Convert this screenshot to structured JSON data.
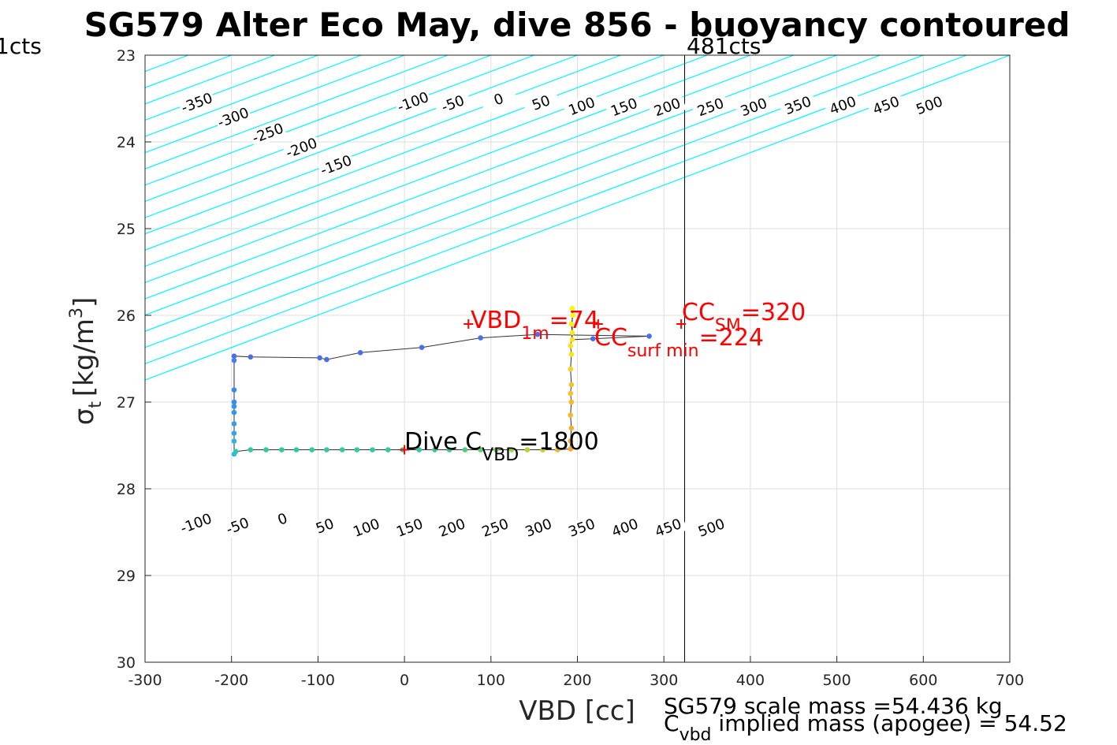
{
  "title": "SG579 Alter Eco May, dive 856 - buoyancy contoured",
  "left_cts_label": "1cts",
  "right_cts_label": "481cts",
  "xlabel": "VBD [cc]",
  "ylabel": {
    "main": "σ",
    "sub": "t",
    "unit": "[kg/m",
    "sup": "3",
    "close": "]"
  },
  "annotations": {
    "vbd1m": {
      "pre": "VBD",
      "sub": "1m",
      "post": "=74"
    },
    "cc_sm": {
      "pre": "CC",
      "sub": "SM",
      "post": "=320"
    },
    "cc_surf": {
      "pre": "CC",
      "sub": "surf min",
      "post": "=224"
    },
    "dive_cvbd": {
      "pre": "Dive C",
      "sub": "VBD",
      "post": "=1800"
    }
  },
  "bottom_notes": {
    "scale_mass": "SG579 scale mass =54.436 kg",
    "implied": {
      "pre": "C",
      "sub": "vbd",
      "post": " implied mass (apogee) = 54.52"
    }
  },
  "chart_data": {
    "type": "scatter",
    "xlim": [
      -300,
      700
    ],
    "ylim": [
      23,
      30
    ],
    "y_reversed": true,
    "x_ticks": [
      -300,
      -200,
      -100,
      0,
      100,
      200,
      300,
      400,
      500,
      600,
      700
    ],
    "y_ticks": [
      23,
      24,
      25,
      26,
      27,
      28,
      29,
      30
    ],
    "grid": true,
    "vertical_line_x": 324,
    "contour_slope_cc_per_sigma": -267,
    "contour_intercept_at_sigma23": [
      -1100,
      -1050,
      -1000,
      -950,
      -900,
      -850,
      -800,
      -750,
      -700,
      -650,
      -600,
      -550,
      -500,
      -450,
      -400,
      -350,
      -300,
      -250,
      -200,
      -150,
      -100,
      -50,
      0,
      50,
      100,
      150,
      200,
      250,
      300,
      350,
      400,
      450,
      500,
      550,
      600,
      650,
      700
    ],
    "contour_colors": {
      "default": "#00f5ff",
      "zero": "#0000cd",
      "special": "#b22ee0"
    },
    "contour_zero_intercept": 134,
    "contour_special_intercepts": [
      134,
      234
    ],
    "contour_labels_top": [
      {
        "text": "-350",
        "x": -240,
        "y": 23.55
      },
      {
        "text": "-300",
        "x": -198,
        "y": 23.72
      },
      {
        "text": "-250",
        "x": -158,
        "y": 23.9
      },
      {
        "text": "-200",
        "x": -119,
        "y": 24.07
      },
      {
        "text": "-150",
        "x": -79,
        "y": 24.27
      },
      {
        "text": "-100",
        "x": 10,
        "y": 23.54
      },
      {
        "text": "-50",
        "x": 56,
        "y": 23.56
      },
      {
        "text": "0",
        "x": 109,
        "y": 23.51
      },
      {
        "text": "50",
        "x": 158,
        "y": 23.55
      },
      {
        "text": "100",
        "x": 205,
        "y": 23.59
      },
      {
        "text": "150",
        "x": 254,
        "y": 23.6
      },
      {
        "text": "200",
        "x": 304,
        "y": 23.6
      },
      {
        "text": "250",
        "x": 354,
        "y": 23.6
      },
      {
        "text": "300",
        "x": 404,
        "y": 23.6
      },
      {
        "text": "350",
        "x": 455,
        "y": 23.58
      },
      {
        "text": "400",
        "x": 507,
        "y": 23.58
      },
      {
        "text": "450",
        "x": 557,
        "y": 23.58
      },
      {
        "text": "500",
        "x": 607,
        "y": 23.58
      }
    ],
    "contour_labels_bottom": [
      {
        "text": "-100",
        "x": -241,
        "y": 28.4
      },
      {
        "text": "-50",
        "x": -193,
        "y": 28.43
      },
      {
        "text": "0",
        "x": -141,
        "y": 28.35
      },
      {
        "text": "50",
        "x": -92,
        "y": 28.43
      },
      {
        "text": "100",
        "x": -44,
        "y": 28.45
      },
      {
        "text": "150",
        "x": 6,
        "y": 28.45
      },
      {
        "text": "200",
        "x": 55,
        "y": 28.45
      },
      {
        "text": "250",
        "x": 105,
        "y": 28.45
      },
      {
        "text": "300",
        "x": 155,
        "y": 28.45
      },
      {
        "text": "350",
        "x": 205,
        "y": 28.45
      },
      {
        "text": "400",
        "x": 255,
        "y": 28.45
      },
      {
        "text": "450",
        "x": 305,
        "y": 28.45
      },
      {
        "text": "500",
        "x": 355,
        "y": 28.45
      }
    ],
    "trajectory": [
      {
        "x": -195,
        "y": 27.57,
        "c": "#32c8a0"
      },
      {
        "x": -178,
        "y": 27.55,
        "c": "#32c8a0"
      },
      {
        "x": -160,
        "y": 27.55,
        "c": "#32c8a0"
      },
      {
        "x": -142,
        "y": 27.55,
        "c": "#32c8a0"
      },
      {
        "x": -125,
        "y": 27.55,
        "c": "#32c8a0"
      },
      {
        "x": -107,
        "y": 27.55,
        "c": "#32c8a0"
      },
      {
        "x": -90,
        "y": 27.55,
        "c": "#32c8a0"
      },
      {
        "x": -72,
        "y": 27.55,
        "c": "#32c8a0"
      },
      {
        "x": -55,
        "y": 27.55,
        "c": "#32c8a0"
      },
      {
        "x": -37,
        "y": 27.55,
        "c": "#32c8a0"
      },
      {
        "x": -19,
        "y": 27.55,
        "c": "#32c8a0"
      },
      {
        "x": -2,
        "y": 27.55,
        "c": "#32c8a0"
      },
      {
        "x": 17,
        "y": 27.55,
        "c": "#32c8a0"
      },
      {
        "x": 35,
        "y": 27.55,
        "c": "#3bc98c"
      },
      {
        "x": 52,
        "y": 27.55,
        "c": "#3bc98c"
      },
      {
        "x": 70,
        "y": 27.55,
        "c": "#50cc80"
      },
      {
        "x": 88,
        "y": 27.55,
        "c": "#5ccf70"
      },
      {
        "x": 106,
        "y": 27.55,
        "c": "#7ad35a"
      },
      {
        "x": 124,
        "y": 27.55,
        "c": "#96d646"
      },
      {
        "x": 142,
        "y": 27.55,
        "c": "#b4d436"
      },
      {
        "x": 160,
        "y": 27.55,
        "c": "#cfc62c"
      },
      {
        "x": 177,
        "y": 27.55,
        "c": "#e4b82e"
      },
      {
        "x": 192,
        "y": 27.54,
        "c": "#f5a830"
      },
      {
        "x": 192,
        "y": 27.45,
        "c": "#f5b030"
      },
      {
        "x": 193,
        "y": 27.3,
        "c": "#f5b030"
      },
      {
        "x": 192,
        "y": 27.15,
        "c": "#f8b82c"
      },
      {
        "x": 193,
        "y": 27.0,
        "c": "#f8b82c"
      },
      {
        "x": 192,
        "y": 26.9,
        "c": "#fbc02a"
      },
      {
        "x": 193,
        "y": 26.8,
        "c": "#fbc02a"
      },
      {
        "x": 192,
        "y": 26.62,
        "c": "#fcd020"
      },
      {
        "x": 193,
        "y": 26.45,
        "c": "#fde018"
      },
      {
        "x": 192,
        "y": 26.35,
        "c": "#fde018"
      },
      {
        "x": 194,
        "y": 26.2,
        "c": "#fdea12"
      },
      {
        "x": 193,
        "y": 26.1,
        "c": "#fef00e"
      },
      {
        "x": 195,
        "y": 26.0,
        "c": "#fef50a"
      },
      {
        "x": 194,
        "y": 25.92,
        "c": "#fef50a"
      },
      {
        "x": 194,
        "y": 26.28,
        "c": "#fde018"
      },
      {
        "x": 218,
        "y": 26.27,
        "c": "#4a6ee8"
      },
      {
        "x": 283,
        "y": 26.24,
        "c": "#4a6ee8"
      },
      {
        "x": 154,
        "y": 26.22,
        "c": "#4a6ee8"
      },
      {
        "x": 88,
        "y": 26.26,
        "c": "#4a6ee8"
      },
      {
        "x": 20,
        "y": 26.37,
        "c": "#4a6ee8"
      },
      {
        "x": -51,
        "y": 26.43,
        "c": "#4a6ee8"
      },
      {
        "x": -90,
        "y": 26.51,
        "c": "#4a6ee8"
      },
      {
        "x": -98,
        "y": 26.49,
        "c": "#4a6ee8"
      },
      {
        "x": -178,
        "y": 26.48,
        "c": "#4a6ee8"
      },
      {
        "x": -197,
        "y": 26.47,
        "c": "#4a6ee8"
      },
      {
        "x": -197,
        "y": 26.52,
        "c": "#4a7cea"
      },
      {
        "x": -197,
        "y": 26.86,
        "c": "#3c8ae8"
      },
      {
        "x": -197,
        "y": 27.0,
        "c": "#3c8ae8"
      },
      {
        "x": -197,
        "y": 27.05,
        "c": "#3a94e6"
      },
      {
        "x": -197,
        "y": 27.12,
        "c": "#3a94e6"
      },
      {
        "x": -197,
        "y": 27.25,
        "c": "#3a9ee4"
      },
      {
        "x": -197,
        "y": 27.36,
        "c": "#36a8e0"
      },
      {
        "x": -197,
        "y": 27.45,
        "c": "#34b2dc"
      },
      {
        "x": -197,
        "y": 27.6,
        "c": "#30bcd6"
      }
    ],
    "markers": [
      {
        "name": "vbd1m",
        "x": 74,
        "y": 26.1
      },
      {
        "name": "cc_sm",
        "x": 320,
        "y": 26.1
      },
      {
        "name": "cc_surf",
        "x": 224,
        "y": 26.1
      },
      {
        "name": "dive",
        "x": 0,
        "y": 27.55
      }
    ]
  }
}
